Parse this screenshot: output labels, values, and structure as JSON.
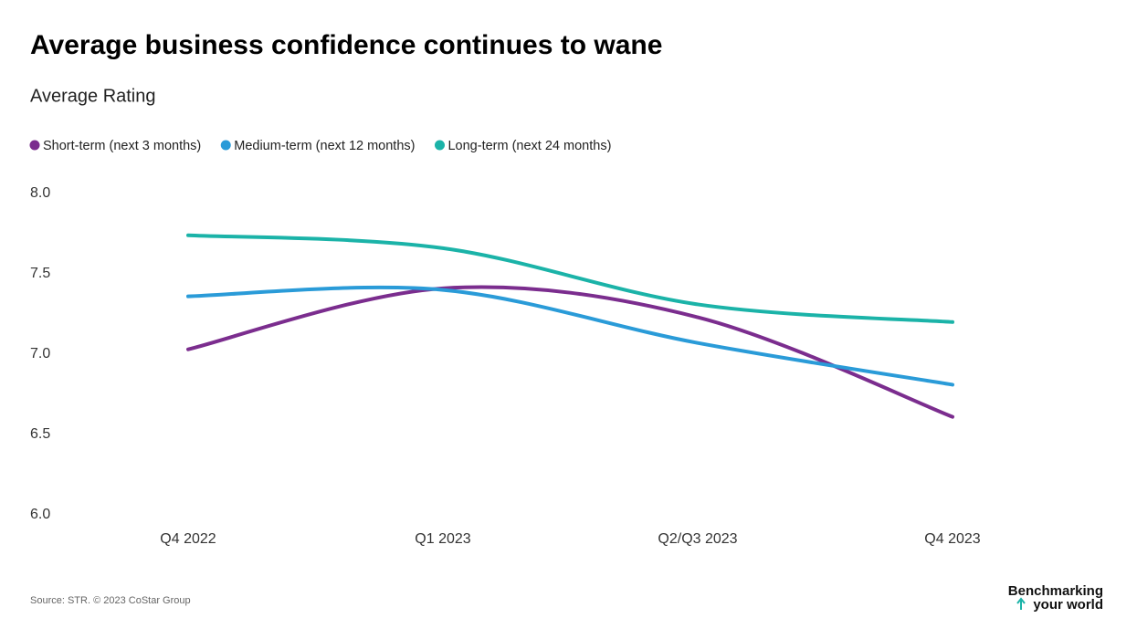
{
  "chart_data": {
    "type": "line",
    "title": "Average business confidence continues to wane",
    "subtitle": "Average Rating",
    "categories": [
      "Q4 2022",
      "Q1 2023",
      "Q2/Q3 2023",
      "Q4 2023"
    ],
    "series": [
      {
        "name": "Short-term (next 3 months)",
        "color": "#7b2d8e",
        "values": [
          7.03,
          7.41,
          7.23,
          6.61
        ]
      },
      {
        "name": "Medium-term (next 12 months)",
        "color": "#2a9bd8",
        "values": [
          7.36,
          7.4,
          7.07,
          6.81
        ]
      },
      {
        "name": "Long-term (next 24 months)",
        "color": "#1bb3a8",
        "values": [
          7.74,
          7.66,
          7.31,
          7.2
        ]
      }
    ],
    "ylim": [
      6,
      8
    ],
    "yticks": [
      {
        "value": 6,
        "label": "6.0"
      },
      6.5,
      {
        "value": 7,
        "label": "7.0"
      },
      7.5,
      {
        "value": 8,
        "label": "8.0"
      }
    ],
    "grid": false,
    "legend": "top-left"
  },
  "footer": {
    "source": "Source: STR. © 2023 CoStar Group",
    "logo": [
      "Benchmarking",
      "your world"
    ]
  }
}
